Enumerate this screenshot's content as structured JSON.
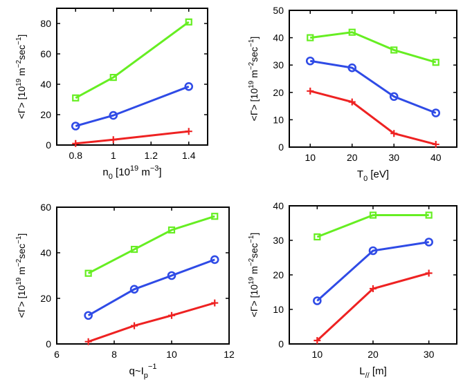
{
  "colors": {
    "green": "#66ee22",
    "blue": "#2f4be6",
    "red": "#ee2222",
    "axis": "#000000"
  },
  "chart_data": [
    {
      "type": "line",
      "xlim": [
        0.7,
        1.5
      ],
      "ylim": [
        0,
        90
      ],
      "xticks": [
        0.8,
        1,
        1.2,
        1.4
      ],
      "xtick_labels": [
        "0.8",
        "1",
        "1.2",
        "1.4"
      ],
      "yticks": [
        0,
        20,
        40,
        60,
        80
      ],
      "ytick_labels": [
        "0",
        "20",
        "40",
        "60",
        "80"
      ],
      "xlabel": {
        "base": "n",
        "sub": "0",
        "rest": " [10",
        "sup": "19",
        "tail": " m",
        "sup2": "−3",
        "end": "]"
      },
      "ylabel": "<Γ> [10^19 m^-2 sec^-1]",
      "series": [
        {
          "color": "green",
          "marker": "square",
          "x": [
            0.8,
            1,
            1.4
          ],
          "y": [
            31,
            44.5,
            81
          ]
        },
        {
          "color": "blue",
          "marker": "circle",
          "x": [
            0.8,
            1,
            1.4
          ],
          "y": [
            12.5,
            19.5,
            38.5
          ]
        },
        {
          "color": "red",
          "marker": "plus",
          "x": [
            0.8,
            1,
            1.4
          ],
          "y": [
            1,
            3.5,
            9
          ]
        }
      ]
    },
    {
      "type": "line",
      "xlim": [
        5,
        45
      ],
      "ylim": [
        0,
        50
      ],
      "xticks": [
        10,
        20,
        30,
        40
      ],
      "xtick_labels": [
        "10",
        "20",
        "30",
        "40"
      ],
      "yticks": [
        0,
        10,
        20,
        30,
        40,
        50
      ],
      "ytick_labels": [
        "0",
        "10",
        "20",
        "30",
        "40",
        "50"
      ],
      "xlabel": {
        "base": "T",
        "sub": "0",
        "rest": " [eV]"
      },
      "ylabel": "<Γ> [10^19 m^-2 sec^-1]",
      "series": [
        {
          "color": "green",
          "marker": "square",
          "x": [
            10,
            20,
            30,
            40
          ],
          "y": [
            40,
            42,
            35.5,
            31
          ]
        },
        {
          "color": "blue",
          "marker": "circle",
          "x": [
            10,
            20,
            30,
            40
          ],
          "y": [
            31.5,
            29,
            18.5,
            12.5
          ]
        },
        {
          "color": "red",
          "marker": "plus",
          "x": [
            10,
            20,
            30,
            40
          ],
          "y": [
            20.5,
            16.5,
            5,
            1
          ]
        }
      ]
    },
    {
      "type": "line",
      "xlim": [
        6,
        12
      ],
      "ylim": [
        0,
        60
      ],
      "xticks": [
        6,
        8,
        10,
        12
      ],
      "xtick_labels": [
        "6",
        "8",
        "10",
        "12"
      ],
      "yticks": [
        0,
        20,
        40,
        60
      ],
      "ytick_labels": [
        "0",
        "20",
        "40",
        "60"
      ],
      "xlabel": {
        "base": "q~I",
        "sub": "p",
        "sup": "−1"
      },
      "ylabel": "<Γ> [10^19 m^-2 sec^-1]",
      "series": [
        {
          "color": "green",
          "marker": "square",
          "x": [
            7.1,
            8.7,
            10,
            11.5
          ],
          "y": [
            31,
            41.5,
            50,
            56
          ]
        },
        {
          "color": "blue",
          "marker": "circle",
          "x": [
            7.1,
            8.7,
            10,
            11.5
          ],
          "y": [
            12.5,
            24,
            30,
            37
          ]
        },
        {
          "color": "red",
          "marker": "plus",
          "x": [
            7.1,
            8.7,
            10,
            11.5
          ],
          "y": [
            1,
            8,
            12.5,
            18
          ]
        }
      ]
    },
    {
      "type": "line",
      "xlim": [
        5,
        35
      ],
      "ylim": [
        0,
        40
      ],
      "xticks": [
        10,
        20,
        30
      ],
      "xtick_labels": [
        "10",
        "20",
        "30"
      ],
      "yticks": [
        0,
        10,
        20,
        30,
        40
      ],
      "ytick_labels": [
        "0",
        "10",
        "20",
        "30",
        "40"
      ],
      "xlabel": {
        "base": "L",
        "sub": "//",
        "rest": " [m]"
      },
      "ylabel": "<Γ> [10^19 m^-2 sec^-1]",
      "series": [
        {
          "color": "green",
          "marker": "square",
          "x": [
            10,
            20,
            30
          ],
          "y": [
            31,
            37.3,
            37.3
          ]
        },
        {
          "color": "blue",
          "marker": "circle",
          "x": [
            10,
            20,
            30
          ],
          "y": [
            12.5,
            27,
            29.5
          ]
        },
        {
          "color": "red",
          "marker": "plus",
          "x": [
            10,
            20,
            30
          ],
          "y": [
            1,
            16,
            20.5
          ]
        }
      ]
    }
  ]
}
